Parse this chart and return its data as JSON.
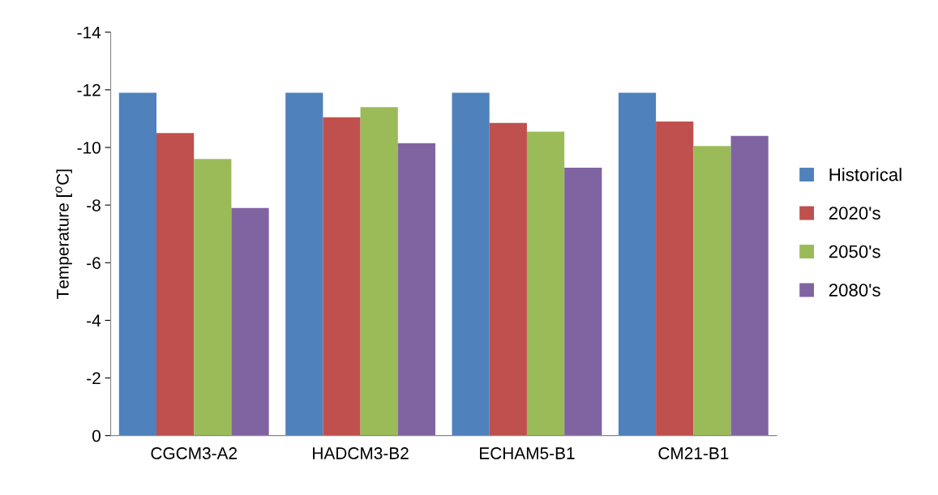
{
  "chart_data": {
    "type": "bar",
    "ylabel": "Temperature [$^{o}$C]",
    "categories": [
      "CGCM3-A2",
      "HADCM3-B2",
      "ECHAM5-B1",
      "CM21-B1"
    ],
    "series": [
      {
        "name": "Historical",
        "color": "#4f81bd",
        "values": [
          -11.9,
          -11.9,
          -11.9,
          -11.9
        ]
      },
      {
        "name": "2020's",
        "color": "#c0504d",
        "values": [
          -10.5,
          -11.05,
          -10.85,
          -10.9
        ]
      },
      {
        "name": "2050's",
        "color": "#9bbb59",
        "values": [
          -9.6,
          -11.4,
          -10.55,
          -10.05
        ]
      },
      {
        "name": "2080's",
        "color": "#8064a2",
        "values": [
          -7.9,
          -10.15,
          -9.3,
          -10.4
        ]
      }
    ],
    "ylim": [
      0,
      -14
    ],
    "yticks": [
      0,
      -2,
      -4,
      -6,
      -8,
      -10,
      -12,
      -14
    ],
    "grid": false,
    "legend": "right"
  }
}
